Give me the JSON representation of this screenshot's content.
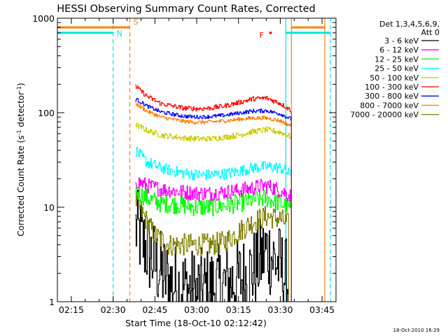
{
  "chart_data": {
    "type": "line",
    "title": "HESSI Observing Summary Count Rates, Corrected",
    "xlabel": "Start Time (18-Oct-10 02:12:42)",
    "ylabel": "Corrected Count Rate (s",
    "ylabel_sup1": "-1",
    "ylabel_mid": " detector",
    "ylabel_sup2": "-1",
    "ylabel_end": ")",
    "yscale": "log",
    "ylim": [
      1,
      1000
    ],
    "xlim": [
      "02:10",
      "03:50"
    ],
    "x_ticks": [
      "02:15",
      "02:30",
      "02:45",
      "03:00",
      "03:15",
      "03:30",
      "03:45"
    ],
    "y_ticks": [
      "1",
      "10",
      "100",
      "1000"
    ],
    "legend_title_1": "Det 1,3,4,5,6,9,",
    "legend_title_2": "Att 0",
    "legend_position": "right",
    "timestamp": "18-Oct-2010 16:29",
    "data_start": "02:38",
    "data_end": "03:35",
    "annotations": [
      {
        "label": "N",
        "time": "02:30",
        "color": "#00e5e5"
      },
      {
        "label": "S",
        "time": "02:36",
        "color": "#ff8000"
      },
      {
        "label": "F",
        "time": "03:25",
        "color": "#ff0000"
      }
    ],
    "markers": [
      {
        "time": "02:30",
        "color": "#00e5e5",
        "style": "dashed"
      },
      {
        "time": "02:36",
        "color": "#ff8000",
        "style": "dashed"
      },
      {
        "time": "03:32",
        "color": "#00e5e5",
        "style": "solid"
      },
      {
        "time": "03:34",
        "color": "#ff8000",
        "style": "solid"
      },
      {
        "time": "03:46",
        "color": "#ff8000",
        "style": "solid"
      },
      {
        "time": "03:48",
        "color": "#00e5e5",
        "style": "dashed"
      }
    ],
    "flag_bars": [
      {
        "label": "S",
        "start": "02:10",
        "end": "02:36",
        "level": 800,
        "color": "#ff8000"
      },
      {
        "label": "N",
        "start": "02:10",
        "end": "02:30",
        "level": 700,
        "color": "#00e5e5"
      },
      {
        "label": "S",
        "start": "03:34",
        "end": "03:46",
        "level": 800,
        "color": "#ff8000"
      },
      {
        "label": "N",
        "start": "03:32",
        "end": "03:48",
        "level": 700,
        "color": "#00e5e5"
      },
      {
        "label": "F",
        "start": "03:26",
        "end": "03:27",
        "level": 700,
        "color": "#ff0000"
      }
    ],
    "series": [
      {
        "name": "3 - 6 keV",
        "color": "#000000",
        "times": [
          "02:38",
          "02:41",
          "02:45",
          "02:50",
          "02:55",
          "03:00",
          "03:05",
          "03:10",
          "03:15",
          "03:20",
          "03:25",
          "03:30",
          "03:33"
        ],
        "values": [
          6,
          4,
          2.5,
          1.6,
          1.4,
          1.3,
          1.4,
          1.5,
          1.7,
          2.1,
          3.5,
          2.3,
          1.5
        ],
        "noise": 0.45
      },
      {
        "name": "6 - 12 keV",
        "color": "#ff00ff",
        "times": [
          "02:38",
          "02:42",
          "02:47",
          "02:55",
          "03:00",
          "03:05",
          "03:10",
          "03:15",
          "03:20",
          "03:25",
          "03:30",
          "03:34"
        ],
        "values": [
          19,
          17,
          15.5,
          14.5,
          14,
          14,
          14.5,
          15,
          16,
          17,
          15,
          13
        ],
        "noise": 0.08
      },
      {
        "name": "12 - 25 keV",
        "color": "#00ff00",
        "times": [
          "02:38",
          "02:42",
          "02:47",
          "02:55",
          "03:00",
          "03:05",
          "03:10",
          "03:15",
          "03:20",
          "03:25",
          "03:30",
          "03:34"
        ],
        "values": [
          15,
          12.5,
          11,
          10.5,
          10,
          10,
          10.5,
          11,
          12,
          12.5,
          11,
          9.5
        ],
        "noise": 0.1
      },
      {
        "name": "25 - 50 keV",
        "color": "#00ffff",
        "times": [
          "02:38",
          "02:42",
          "02:47",
          "02:55",
          "03:00",
          "03:05",
          "03:10",
          "03:15",
          "03:20",
          "03:25",
          "03:30",
          "03:34"
        ],
        "values": [
          40,
          30,
          26,
          23,
          22,
          22,
          22.5,
          24,
          26,
          27,
          26,
          22
        ],
        "noise": 0.06
      },
      {
        "name": "50 - 100 keV",
        "color": "#cccc00",
        "times": [
          "02:38",
          "02:42",
          "02:47",
          "02:55",
          "03:00",
          "03:05",
          "03:10",
          "03:15",
          "03:20",
          "03:25",
          "03:30",
          "03:34"
        ],
        "values": [
          75,
          65,
          58,
          54,
          53,
          53,
          55,
          58,
          63,
          66,
          62,
          55
        ],
        "noise": 0.03
      },
      {
        "name": "100 - 300 keV",
        "color": "#ff0000",
        "times": [
          "02:38",
          "02:42",
          "02:47",
          "02:55",
          "03:00",
          "03:05",
          "03:10",
          "03:15",
          "03:20",
          "03:25",
          "03:30",
          "03:34"
        ],
        "values": [
          190,
          150,
          125,
          112,
          110,
          112,
          118,
          128,
          140,
          143,
          125,
          105
        ],
        "noise": 0.025
      },
      {
        "name": "300 - 800 keV",
        "color": "#0000ff",
        "times": [
          "02:38",
          "02:42",
          "02:47",
          "02:55",
          "03:00",
          "03:05",
          "03:10",
          "03:15",
          "03:20",
          "03:25",
          "03:30",
          "03:34"
        ],
        "values": [
          140,
          118,
          102,
          92,
          90,
          91,
          94,
          99,
          104,
          105,
          97,
          85
        ],
        "noise": 0.02
      },
      {
        "name": "800 - 7000 keV",
        "color": "#ff8000",
        "times": [
          "02:38",
          "02:42",
          "02:47",
          "02:55",
          "03:00",
          "03:05",
          "03:10",
          "03:15",
          "03:20",
          "03:25",
          "03:30",
          "03:34"
        ],
        "values": [
          125,
          104,
          90,
          81,
          79,
          80,
          82,
          85,
          88,
          88,
          82,
          72
        ],
        "noise": 0.02
      },
      {
        "name": "7000 - 20000 keV",
        "color": "#808000",
        "times": [
          "02:38",
          "02:42",
          "02:45",
          "02:50",
          "02:55",
          "03:00",
          "03:05",
          "03:10",
          "03:15",
          "03:20",
          "03:25",
          "03:30",
          "03:33"
        ],
        "values": [
          12,
          7,
          5,
          4,
          4,
          4,
          4,
          4.3,
          5.5,
          7,
          8,
          7.5,
          6.5
        ],
        "noise": 0.12
      }
    ]
  }
}
